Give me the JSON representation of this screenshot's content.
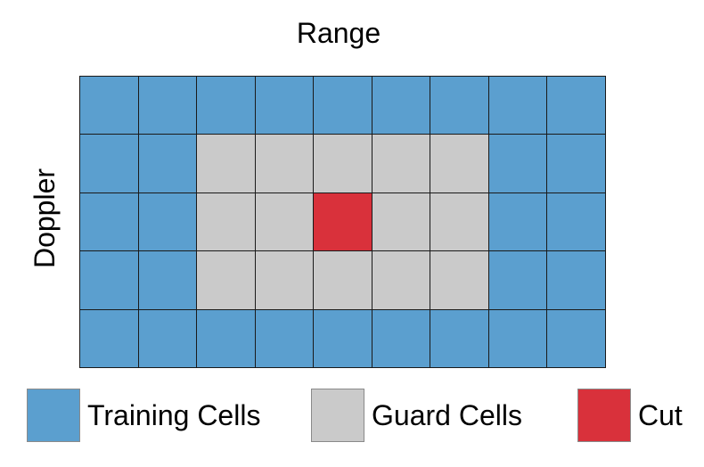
{
  "labels": {
    "range": "Range",
    "doppler": "Doppler"
  },
  "colors": {
    "training": "#5b9fcf",
    "guard": "#cacaca",
    "cut": "#d9313b"
  },
  "grid": {
    "rows": 5,
    "cols": 9,
    "cells": [
      [
        "training",
        "training",
        "training",
        "training",
        "training",
        "training",
        "training",
        "training",
        "training"
      ],
      [
        "training",
        "training",
        "guard",
        "guard",
        "guard",
        "guard",
        "guard",
        "training",
        "training"
      ],
      [
        "training",
        "training",
        "guard",
        "guard",
        "cut",
        "guard",
        "guard",
        "training",
        "training"
      ],
      [
        "training",
        "training",
        "guard",
        "guard",
        "guard",
        "guard",
        "guard",
        "training",
        "training"
      ],
      [
        "training",
        "training",
        "training",
        "training",
        "training",
        "training",
        "training",
        "training",
        "training"
      ]
    ]
  },
  "legend": [
    {
      "type": "training",
      "label": "Training Cells"
    },
    {
      "type": "guard",
      "label": "Guard Cells"
    },
    {
      "type": "cut",
      "label": "Cut"
    }
  ]
}
